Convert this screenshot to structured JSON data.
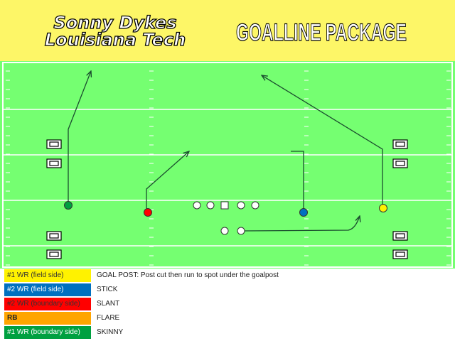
{
  "header": {
    "coach": "Sonny Dykes",
    "team": "Louisiana Tech",
    "play": "GOALLINE PACKAGE"
  },
  "colors": {
    "header_bg": "#fdf667",
    "field": "#75ff71",
    "wr1_field": "#fff200",
    "wr2_field": "#0070c0",
    "wr2_boundary": "#ff0000",
    "rb": "#ffa500",
    "wr1_boundary": "#00a040",
    "route": "#1a4d2e"
  },
  "legend": [
    {
      "role": "#1 WR (field side)",
      "route": "GOAL POST: Post cut then run to spot under the goalpost"
    },
    {
      "role": "#2 WR (field side)",
      "route": "STICK"
    },
    {
      "role": "#2 WR (boundary side)",
      "route": "SLANT"
    },
    {
      "role": "RB",
      "route": "FLARE"
    },
    {
      "role": "#1 WR (boundary side)",
      "route": "SKINNY"
    }
  ]
}
